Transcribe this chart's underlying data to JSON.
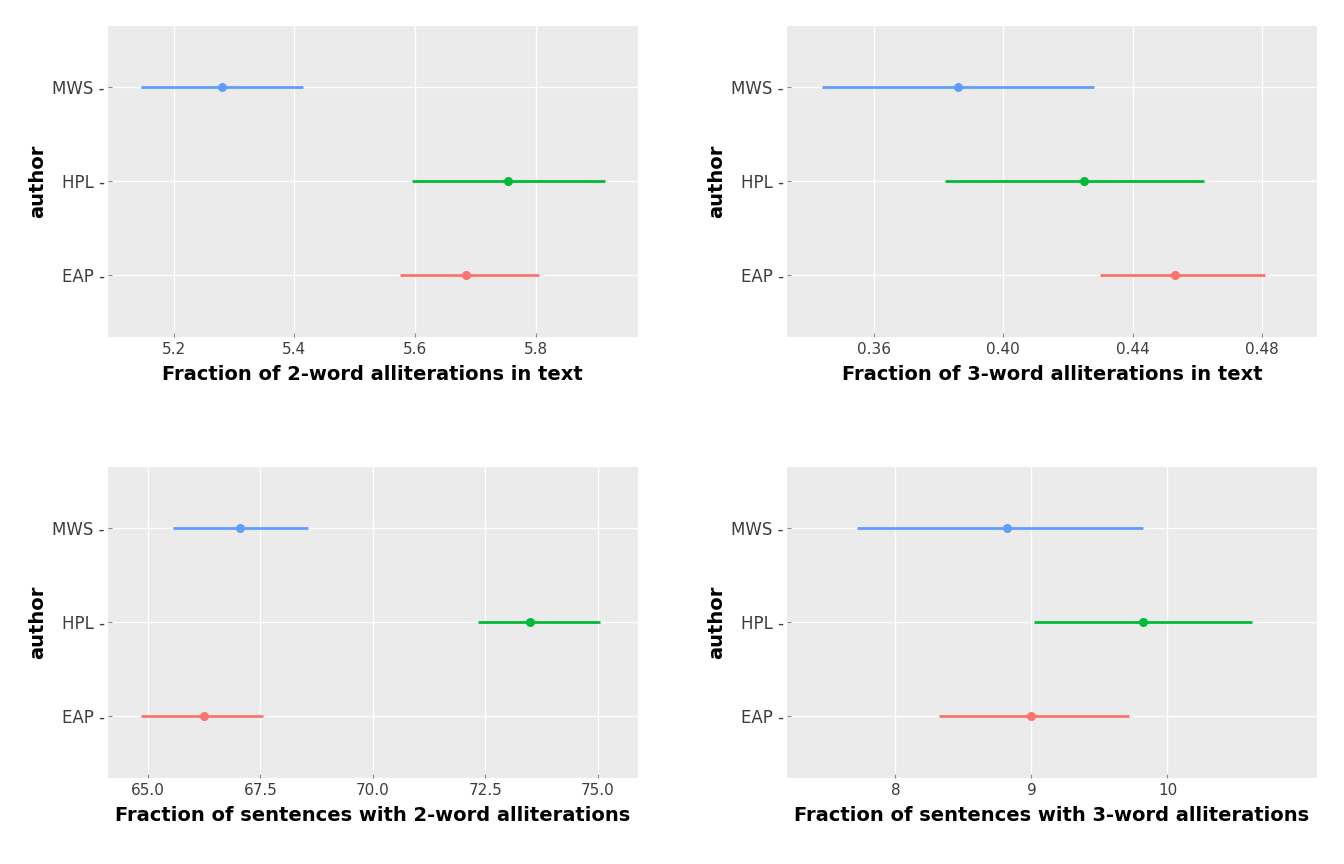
{
  "plots": [
    {
      "xlabel": "Fraction of 2-word alliterations in text",
      "authors": [
        "MWS",
        "HPL",
        "EAP"
      ],
      "centers": [
        5.28,
        5.755,
        5.685
      ],
      "lows": [
        5.145,
        5.595,
        5.575
      ],
      "highs": [
        5.415,
        5.915,
        5.805
      ],
      "colors": [
        "#619CFF",
        "#00BA38",
        "#F8766D"
      ],
      "xlim": [
        5.09,
        5.97
      ],
      "xticks": [
        5.2,
        5.4,
        5.6,
        5.8
      ]
    },
    {
      "xlabel": "Fraction of 3-word alliterations in text",
      "authors": [
        "MWS",
        "HPL",
        "EAP"
      ],
      "centers": [
        0.386,
        0.425,
        0.453
      ],
      "lows": [
        0.344,
        0.382,
        0.43
      ],
      "highs": [
        0.428,
        0.462,
        0.481
      ],
      "colors": [
        "#619CFF",
        "#00BA38",
        "#F8766D"
      ],
      "xlim": [
        0.333,
        0.497
      ],
      "xticks": [
        0.36,
        0.4,
        0.44,
        0.48
      ]
    },
    {
      "xlabel": "Fraction of sentences with 2-word alliterations",
      "authors": [
        "MWS",
        "HPL",
        "EAP"
      ],
      "centers": [
        67.05,
        73.5,
        66.25
      ],
      "lows": [
        65.55,
        72.35,
        64.85
      ],
      "highs": [
        68.55,
        75.05,
        67.55
      ],
      "colors": [
        "#619CFF",
        "#00BA38",
        "#F8766D"
      ],
      "xlim": [
        64.1,
        75.9
      ],
      "xticks": [
        65.0,
        67.5,
        70.0,
        72.5,
        75.0
      ]
    },
    {
      "xlabel": "Fraction of sentences with 3-word alliterations",
      "authors": [
        "MWS",
        "HPL",
        "EAP"
      ],
      "centers": [
        8.82,
        9.82,
        9.0
      ],
      "lows": [
        7.72,
        9.02,
        8.32
      ],
      "highs": [
        9.82,
        10.62,
        9.72
      ],
      "colors": [
        "#619CFF",
        "#00BA38",
        "#F8766D"
      ],
      "xlim": [
        7.2,
        11.1
      ],
      "xticks": [
        8,
        9,
        10
      ]
    }
  ],
  "bg_color": "#EBEBEB",
  "grid_color": "#FFFFFF",
  "ylabel": "author",
  "capsize": 5,
  "linewidth": 2.0,
  "markersize": 6.5,
  "tick_label_fontsize": 12,
  "axis_label_fontsize": 14,
  "ytick_labels": [
    "EAP -",
    "HPL -",
    "MWS -"
  ]
}
